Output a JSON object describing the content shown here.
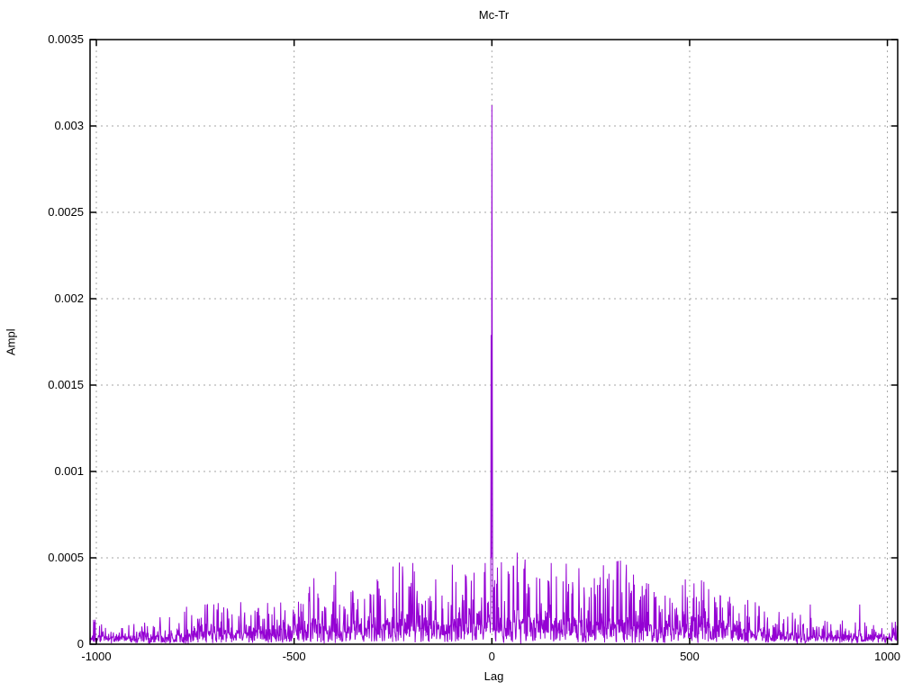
{
  "page": {
    "background": "#ffffff",
    "text_color": "#000000"
  },
  "chart_data": {
    "type": "line",
    "title": "Mc-Tr",
    "xlabel": "Lag",
    "ylabel": "Ampl",
    "xlim": [
      -1016,
      1026
    ],
    "ylim": [
      0,
      0.0035
    ],
    "grid": true,
    "legend": "none",
    "x_ticks": [
      {
        "value": -1000,
        "label": "-1000"
      },
      {
        "value": -500,
        "label": "-500"
      },
      {
        "value": 0,
        "label": "0"
      },
      {
        "value": 500,
        "label": "500"
      },
      {
        "value": 1000,
        "label": "1000"
      }
    ],
    "y_ticks": [
      {
        "value": 0,
        "label": "0"
      },
      {
        "value": 0.0005,
        "label": "0.0005"
      },
      {
        "value": 0.001,
        "label": "0.001"
      },
      {
        "value": 0.0015,
        "label": "0.0015"
      },
      {
        "value": 0.002,
        "label": "0.002"
      },
      {
        "value": 0.0025,
        "label": "0.0025"
      },
      {
        "value": 0.003,
        "label": "0.003"
      },
      {
        "value": 0.0035,
        "label": "0.0035"
      }
    ],
    "colors": {
      "line": "#9400d3",
      "grid": "#a6a6a6",
      "border": "#000000"
    },
    "series_description": "Cross-correlation amplitude vs lag: dense noise floor with roughly triangular envelope and a sharp dominant spike at lag 0",
    "main_peaks": [
      [
        -2,
        0.00179
      ],
      [
        -1,
        0.0005
      ],
      [
        0,
        0.00312
      ],
      [
        1,
        0.0016
      ],
      [
        2,
        0.00035
      ],
      [
        64,
        0.00053
      ],
      [
        -395,
        0.00042
      ],
      [
        -250,
        0.00045
      ],
      [
        -200,
        0.00047
      ],
      [
        -100,
        0.00046
      ],
      [
        55,
        0.00045
      ],
      [
        150,
        0.00047
      ],
      [
        220,
        0.00044
      ],
      [
        340,
        0.00046
      ],
      [
        530,
        0.00037
      ],
      [
        805,
        0.00023
      ],
      [
        930,
        0.00023
      ]
    ],
    "noise_envelope": [
      [
        -1016,
        0.00013
      ],
      [
        -900,
        0.00014
      ],
      [
        -800,
        0.00017
      ],
      [
        -700,
        0.00028
      ],
      [
        -620,
        0.00022
      ],
      [
        -500,
        0.0003
      ],
      [
        -430,
        0.0004
      ],
      [
        -380,
        0.00032
      ],
      [
        -300,
        0.00038
      ],
      [
        -230,
        0.00046
      ],
      [
        -150,
        0.00042
      ],
      [
        -80,
        0.00046
      ],
      [
        0,
        0.00045
      ],
      [
        80,
        0.00048
      ],
      [
        160,
        0.00046
      ],
      [
        250,
        0.00042
      ],
      [
        330,
        0.00045
      ],
      [
        420,
        0.00032
      ],
      [
        520,
        0.00036
      ],
      [
        620,
        0.00028
      ],
      [
        720,
        0.00022
      ],
      [
        820,
        0.00016
      ],
      [
        920,
        0.00013
      ],
      [
        1026,
        0.00012
      ]
    ],
    "noise": {
      "seed": 1234,
      "step": 1,
      "floor": 1e-05,
      "band_fraction": 0.32,
      "spike_exponent": 6,
      "spike_fraction": 0.85
    }
  }
}
